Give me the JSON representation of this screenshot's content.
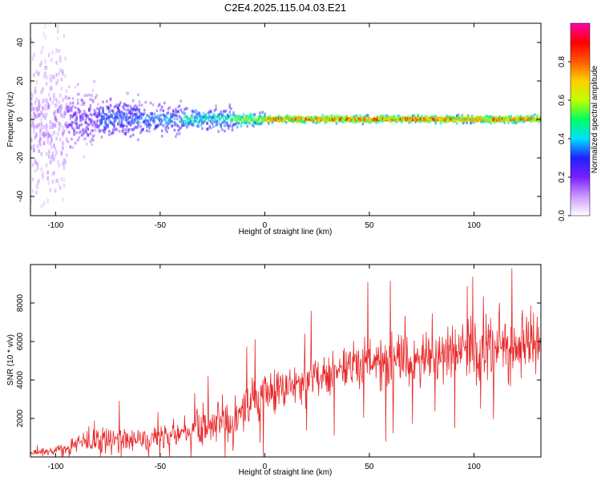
{
  "title": "C2E4.2025.115.04.03.E21",
  "chart_data": [
    {
      "type": "heatmap",
      "xlabel": "Height of straight line (km)",
      "ylabel": "Frequency (Hz)",
      "xlim": [
        -112,
        132
      ],
      "ylim": [
        -50,
        50
      ],
      "x_ticks": [
        -100,
        -50,
        0,
        50,
        100
      ],
      "y_ticks": [
        -40,
        -20,
        0,
        20,
        40
      ],
      "colorbar": {
        "label": "Normalized spectral amplitude",
        "range": [
          0,
          1
        ],
        "ticks": [
          "0.0",
          "0.2",
          "0.4",
          "0.6",
          "0.8"
        ],
        "colors": [
          "#ffffff",
          "#cc99ff",
          "#7a1fff",
          "#2020ff",
          "#00e0ff",
          "#00ff60",
          "#c0ff00",
          "#ffd000",
          "#ff5a00",
          "#ff0000",
          "#ff00aa"
        ]
      },
      "bands": [
        {
          "x_start": -112,
          "x_end": -95,
          "spread_hz": 50,
          "amplitude": 0.18
        },
        {
          "x_start": -95,
          "x_end": -80,
          "spread_hz": 18,
          "amplitude": 0.3
        },
        {
          "x_start": -80,
          "x_end": -60,
          "spread_hz": 12,
          "amplitude": 0.4
        },
        {
          "x_start": -60,
          "x_end": -40,
          "spread_hz": 9,
          "amplitude": 0.45
        },
        {
          "x_start": -40,
          "x_end": -15,
          "spread_hz": 6,
          "amplitude": 0.55
        },
        {
          "x_start": -15,
          "x_end": 0,
          "spread_hz": 4,
          "amplitude": 0.7
        },
        {
          "x_start": 0,
          "x_end": 132,
          "spread_hz": 2,
          "amplitude": 0.95
        }
      ]
    },
    {
      "type": "line",
      "xlabel": "Height of straight line (km)",
      "ylabel": "SNR (10 * v/v)",
      "xlim": [
        -112,
        132
      ],
      "ylim": [
        0,
        10000
      ],
      "x_ticks": [
        -100,
        -50,
        0,
        50,
        100
      ],
      "y_ticks": [
        2000,
        4000,
        6000,
        8000
      ],
      "series": [
        {
          "color": "#e8292b",
          "envelope": [
            {
              "x": -112,
              "mean": 200,
              "spread": 150
            },
            {
              "x": -95,
              "mean": 400,
              "spread": 400
            },
            {
              "x": -90,
              "mean": 700,
              "spread": 800
            },
            {
              "x": -80,
              "mean": 900,
              "spread": 1100
            },
            {
              "x": -60,
              "mean": 900,
              "spread": 900
            },
            {
              "x": -40,
              "mean": 1200,
              "spread": 1100
            },
            {
              "x": -25,
              "mean": 1800,
              "spread": 1600
            },
            {
              "x": -15,
              "mean": 1400,
              "spread": 1800
            },
            {
              "x": -10,
              "mean": 2600,
              "spread": 1600
            },
            {
              "x": 0,
              "mean": 3200,
              "spread": 1600
            },
            {
              "x": 10,
              "mean": 3600,
              "spread": 1500
            },
            {
              "x": 25,
              "mean": 4200,
              "spread": 1600
            },
            {
              "x": 40,
              "mean": 4800,
              "spread": 1700
            },
            {
              "x": 60,
              "mean": 4900,
              "spread": 1700
            },
            {
              "x": 80,
              "mean": 5200,
              "spread": 2000
            },
            {
              "x": 100,
              "mean": 5600,
              "spread": 2300
            },
            {
              "x": 120,
              "mean": 5800,
              "spread": 2500
            },
            {
              "x": 132,
              "mean": 6000,
              "spread": 2400
            }
          ]
        }
      ]
    }
  ]
}
